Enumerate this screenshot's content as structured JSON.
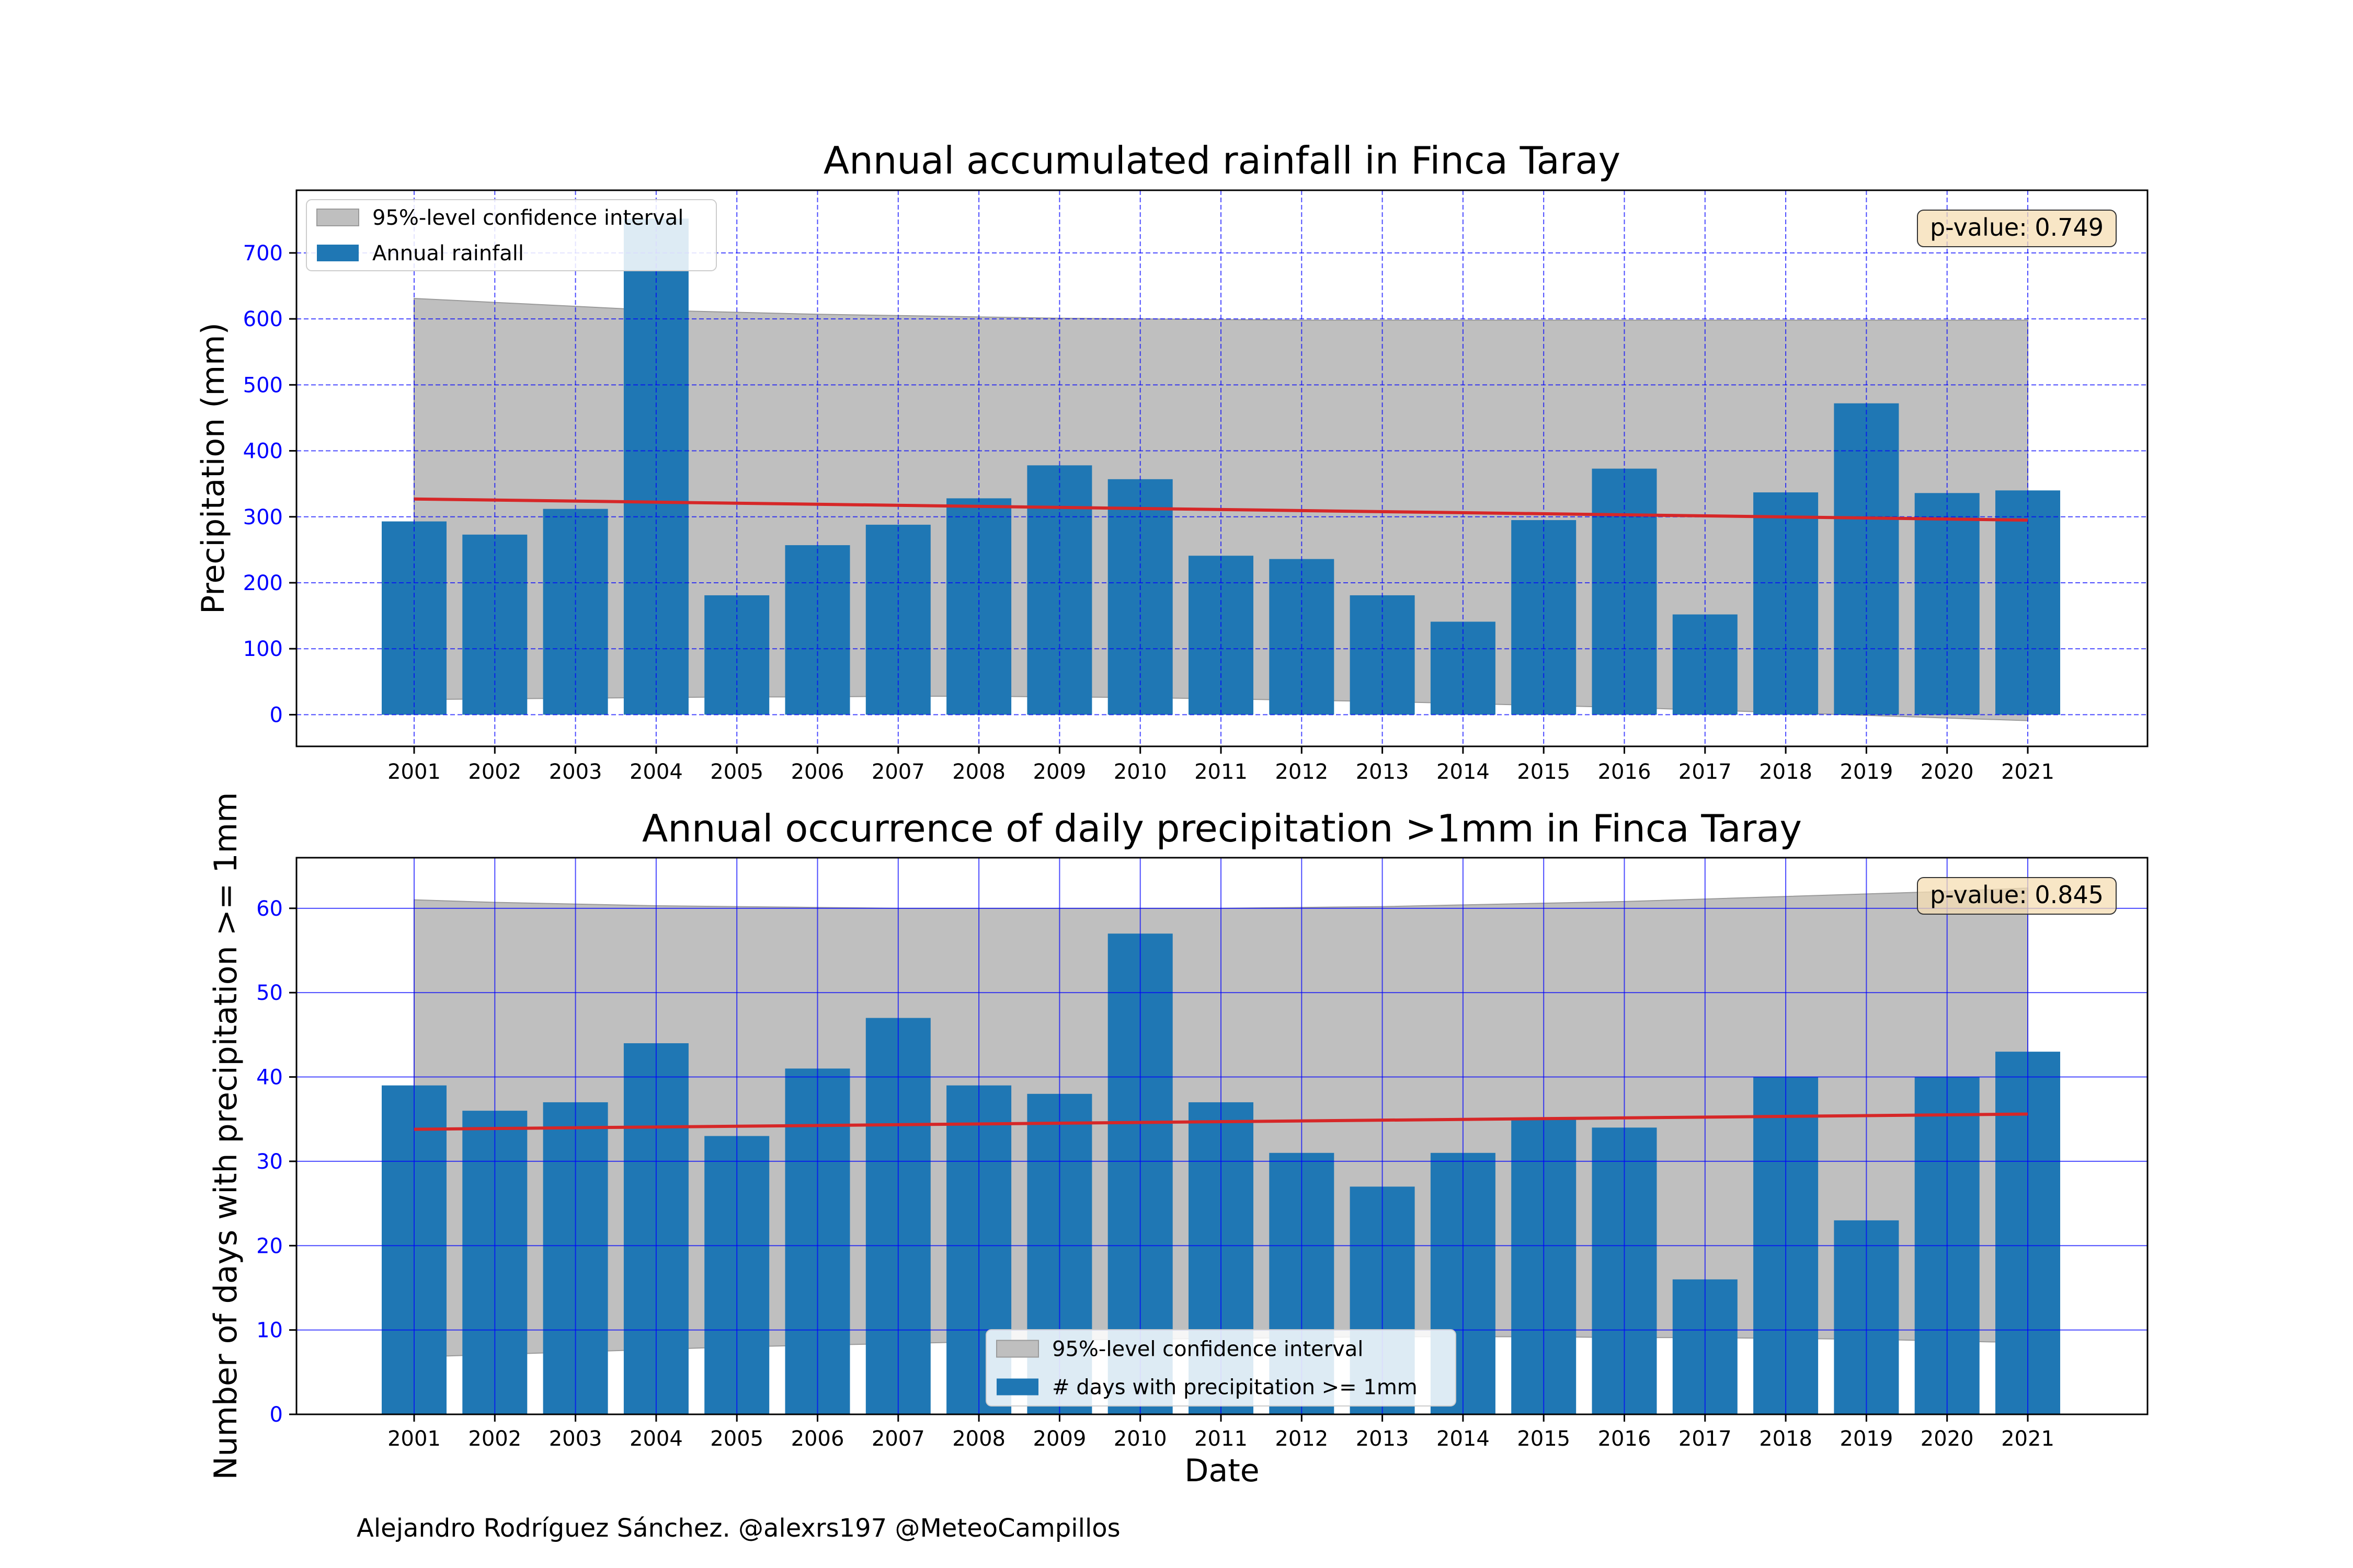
{
  "footer": {
    "credit": "Alejandro Rodríguez Sánchez. @alexrs197 @MeteoCampillos"
  },
  "colors": {
    "bar": "#1f77b4",
    "trend": "#d62728",
    "ci": "#bfbfbf",
    "grid": "#0000ff",
    "tick_label": "#0000ff",
    "pvalue_box": "#f5deb3"
  },
  "chart_data": [
    {
      "type": "bar",
      "title": "Annual accumulated rainfall in Finca Taray",
      "xlabel": "",
      "ylabel": "Precipitation (mm)",
      "categories": [
        "2001",
        "2002",
        "2003",
        "2004",
        "2005",
        "2006",
        "2007",
        "2008",
        "2009",
        "2010",
        "2011",
        "2012",
        "2013",
        "2014",
        "2015",
        "2016",
        "2017",
        "2018",
        "2019",
        "2020",
        "2021"
      ],
      "series": [
        {
          "name": "Annual rainfall",
          "values": [
            293,
            273,
            312,
            752,
            181,
            257,
            288,
            328,
            378,
            357,
            241,
            236,
            181,
            141,
            295,
            373,
            152,
            337,
            472,
            336,
            340
          ]
        }
      ],
      "trend": {
        "start": 327,
        "end": 295
      },
      "confidence_interval": {
        "name": "95%-level confidence interval",
        "upper": [
          631,
          625,
          619,
          613,
          610,
          607,
          605,
          603,
          601,
          600,
          599,
          598,
          598,
          598,
          598,
          598,
          598,
          598,
          598,
          598,
          598
        ],
        "lower": [
          23,
          24,
          25,
          26,
          27,
          27,
          28,
          28,
          27,
          26,
          24,
          22,
          20,
          17,
          14,
          11,
          7,
          3,
          -1,
          -5,
          -9
        ]
      },
      "pvalue": "p-value: 0.749",
      "ylim": [
        -48,
        795
      ],
      "yticks": [
        0,
        100,
        200,
        300,
        400,
        500,
        600,
        700
      ],
      "grid": {
        "style": "dashed",
        "on": true
      },
      "legend": {
        "placement": "top-left",
        "order": [
          "ci",
          "bars"
        ]
      }
    },
    {
      "type": "bar",
      "title": "Annual occurrence of daily precipitation >1mm in Finca Taray",
      "xlabel": "Date",
      "ylabel": "Number of days with precipitation >= 1mm",
      "categories": [
        "2001",
        "2002",
        "2003",
        "2004",
        "2005",
        "2006",
        "2007",
        "2008",
        "2009",
        "2010",
        "2011",
        "2012",
        "2013",
        "2014",
        "2015",
        "2016",
        "2017",
        "2018",
        "2019",
        "2020",
        "2021"
      ],
      "series": [
        {
          "name": "# days with precipitation >= 1mm",
          "values": [
            39,
            36,
            37,
            44,
            33,
            41,
            47,
            39,
            38,
            57,
            37,
            31,
            27,
            31,
            35,
            34,
            16,
            40,
            23,
            40,
            43
          ]
        }
      ],
      "trend": {
        "start": 33.8,
        "end": 35.6
      },
      "confidence_interval": {
        "name": "95%-level confidence interval",
        "upper": [
          61.0,
          60.7,
          60.5,
          60.3,
          60.2,
          60.1,
          60.0,
          60.0,
          60.0,
          60.0,
          60.0,
          60.1,
          60.2,
          60.4,
          60.6,
          60.8,
          61.1,
          61.4,
          61.7,
          62.0,
          62.4
        ],
        "lower": [
          6.8,
          7.1,
          7.4,
          7.7,
          8.0,
          8.2,
          8.4,
          8.6,
          8.8,
          8.9,
          9.0,
          9.1,
          9.2,
          9.2,
          9.2,
          9.1,
          9.1,
          9.0,
          8.9,
          8.7,
          8.5
        ]
      },
      "pvalue": "p-value: 0.845",
      "ylim": [
        0,
        66
      ],
      "yticks": [
        0,
        10,
        20,
        30,
        40,
        50,
        60
      ],
      "grid": {
        "style": "solid",
        "on": true
      },
      "legend": {
        "placement": "lower-center",
        "order": [
          "ci",
          "bars"
        ]
      }
    }
  ]
}
